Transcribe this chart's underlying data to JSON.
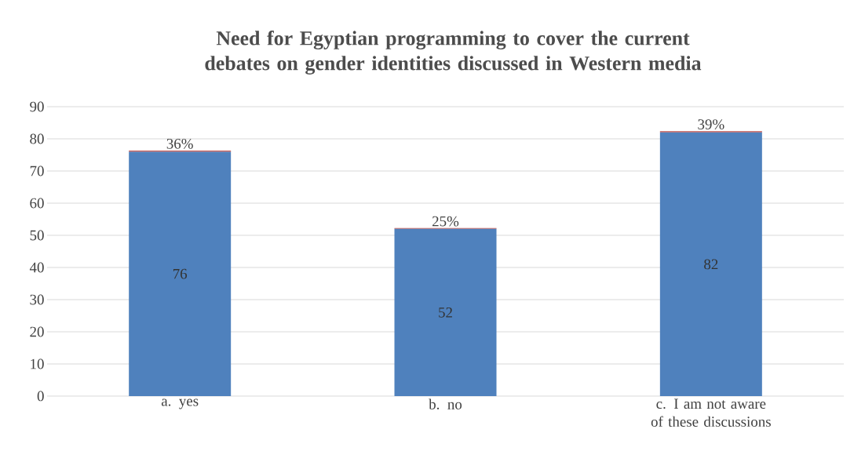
{
  "chart_data": {
    "type": "bar",
    "stacked": true,
    "title": "Need for Egyptian programming to cover the current debates on gender identities discussed in Western media",
    "categories": [
      "a. yes",
      "b. no",
      "c. I am not aware of these discussions"
    ],
    "series": [
      {
        "color": "#4f81bd",
        "values": [
          76,
          52,
          82
        ],
        "data_labels": true
      },
      {
        "color": "#c0504d",
        "values": [
          0.36,
          0.25,
          0.39
        ],
        "value_labels": [
          "36%",
          "25%",
          "39%"
        ]
      }
    ],
    "ylim": [
      0,
      90
    ],
    "yticks": [
      0,
      10,
      20,
      30,
      40,
      50,
      60,
      70,
      80,
      90
    ],
    "grid": "y"
  }
}
